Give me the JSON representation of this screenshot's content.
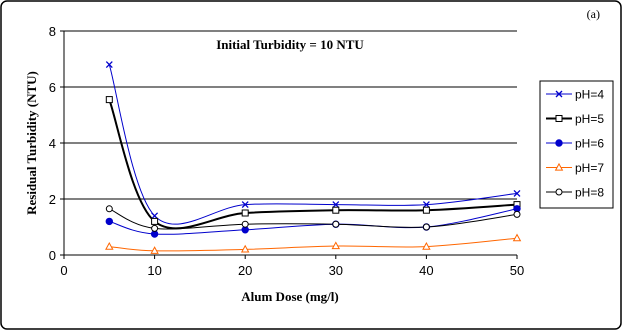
{
  "chart_data": {
    "type": "line",
    "panel_label": "(a)",
    "annotation": "Initial Turbidity = 10 NTU",
    "xlabel": "Alum Dose (mg/l)",
    "ylabel": "Residual Turbidity (NTU)",
    "xlim": [
      0,
      50
    ],
    "ylim": [
      0,
      8
    ],
    "xticks": [
      0,
      10,
      20,
      30,
      40,
      50
    ],
    "yticks": [
      0,
      2,
      4,
      6,
      8
    ],
    "grid": "horizontal",
    "legend_position": "right",
    "x": [
      5,
      10,
      20,
      30,
      40,
      50
    ],
    "series": [
      {
        "name": "pH=4",
        "values": [
          6.8,
          1.4,
          1.8,
          1.8,
          1.8,
          2.2
        ],
        "color": "#0000cc",
        "marker": "x",
        "line_width": 1
      },
      {
        "name": "pH=5",
        "values": [
          5.55,
          1.2,
          1.5,
          1.6,
          1.6,
          1.8
        ],
        "color": "#000000",
        "marker": "open-square",
        "line_width": 2
      },
      {
        "name": "pH=6",
        "values": [
          1.2,
          0.75,
          0.9,
          1.1,
          1.0,
          1.65
        ],
        "color": "#0000cc",
        "marker": "filled-circle",
        "line_width": 1
      },
      {
        "name": "pH=7",
        "values": [
          0.3,
          0.15,
          0.2,
          0.32,
          0.3,
          0.6
        ],
        "color": "#ff6600",
        "marker": "open-triangle",
        "line_width": 1
      },
      {
        "name": "pH=8",
        "values": [
          1.65,
          0.95,
          1.1,
          1.1,
          1.0,
          1.45
        ],
        "color": "#000000",
        "marker": "open-circle",
        "line_width": 1
      }
    ]
  }
}
